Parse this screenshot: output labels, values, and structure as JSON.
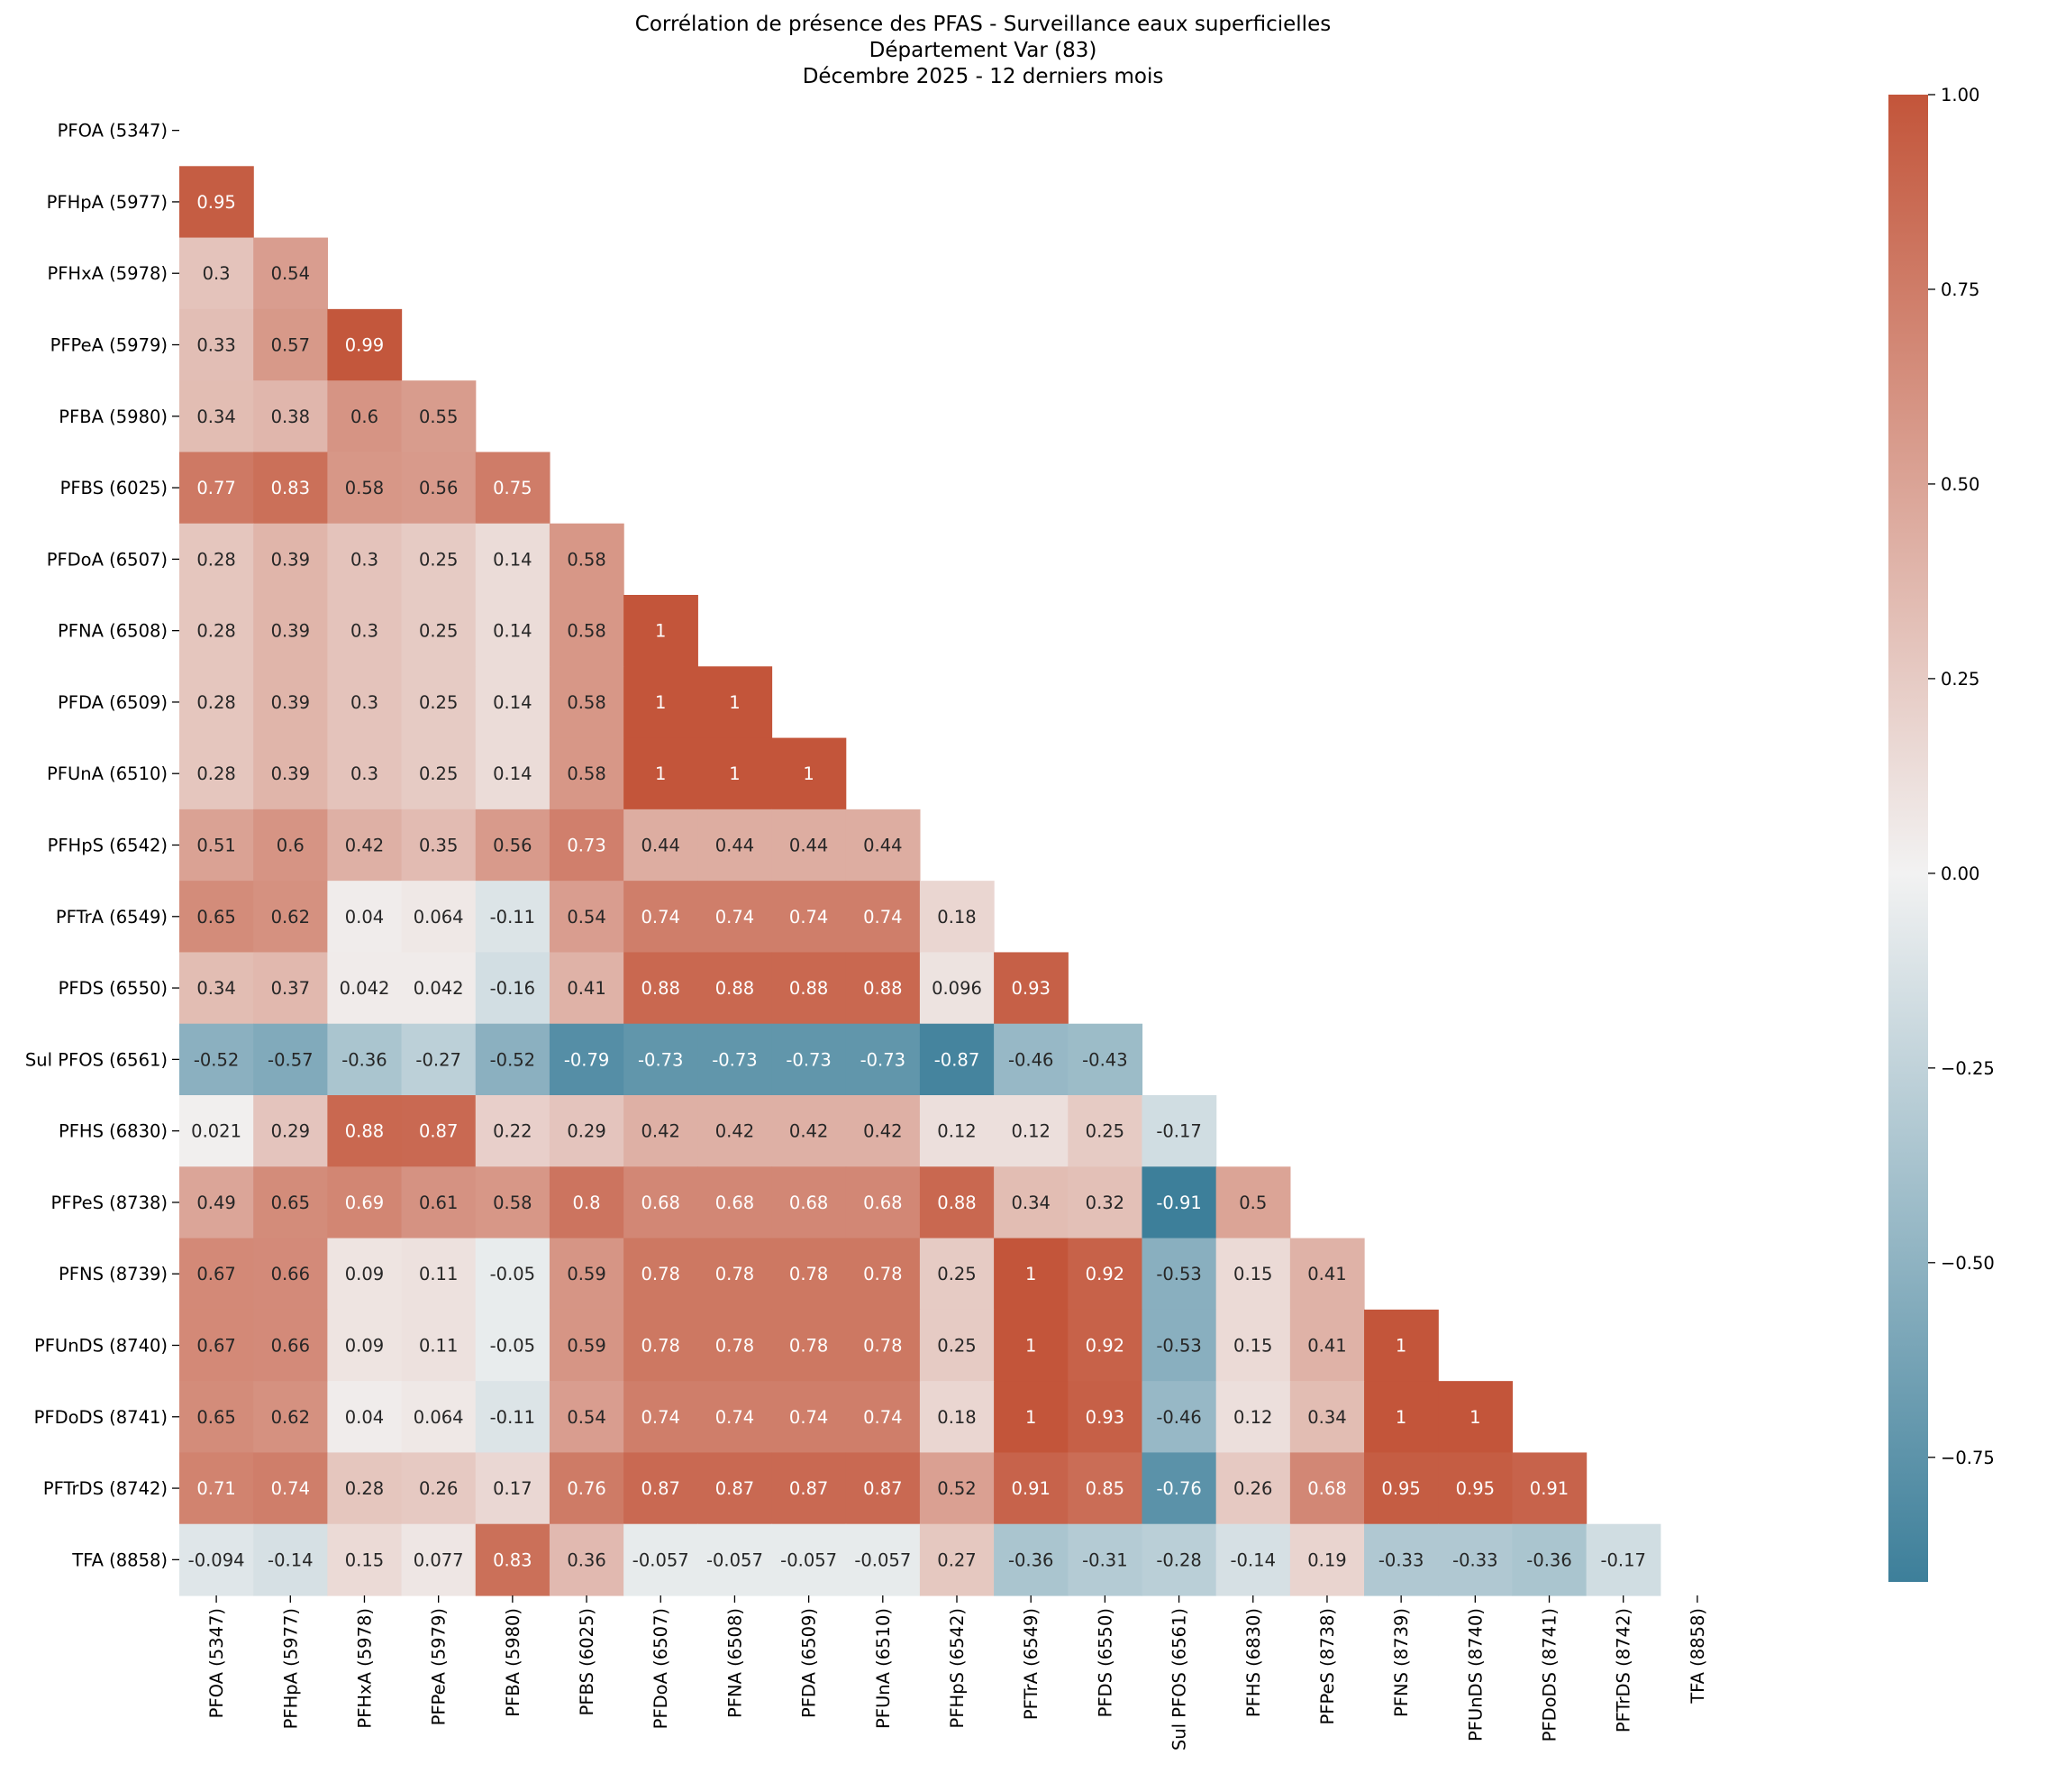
{
  "chart_data": {
    "type": "heatmap",
    "title": [
      "Corrélation de présence des PFAS - Surveillance eaux superficielles",
      "Département Var (83)",
      "Décembre 2025 - 12 derniers mois"
    ],
    "labels": [
      "PFOA (5347)",
      "PFHpA (5977)",
      "PFHxA (5978)",
      "PFPeA (5979)",
      "PFBA (5980)",
      "PFBS (6025)",
      "PFDoA (6507)",
      "PFNA (6508)",
      "PFDA (6509)",
      "PFUnA (6510)",
      "PFHpS (6542)",
      "PFTrA (6549)",
      "PFDS (6550)",
      "Sul PFOS (6561)",
      "PFHS (6830)",
      "PFPeS (8738)",
      "PFNS (8739)",
      "PFUnDS (8740)",
      "PFDoDS (8741)",
      "PFTrDS (8742)",
      "TFA (8858)"
    ],
    "lower_triangle": [
      [],
      [
        "0.95"
      ],
      [
        "0.3",
        "0.54"
      ],
      [
        "0.33",
        "0.57",
        "0.99"
      ],
      [
        "0.34",
        "0.38",
        "0.6",
        "0.55"
      ],
      [
        "0.77",
        "0.83",
        "0.58",
        "0.56",
        "0.75"
      ],
      [
        "0.28",
        "0.39",
        "0.3",
        "0.25",
        "0.14",
        "0.58"
      ],
      [
        "0.28",
        "0.39",
        "0.3",
        "0.25",
        "0.14",
        "0.58",
        "1"
      ],
      [
        "0.28",
        "0.39",
        "0.3",
        "0.25",
        "0.14",
        "0.58",
        "1",
        "1"
      ],
      [
        "0.28",
        "0.39",
        "0.3",
        "0.25",
        "0.14",
        "0.58",
        "1",
        "1",
        "1"
      ],
      [
        "0.51",
        "0.6",
        "0.42",
        "0.35",
        "0.56",
        "0.73",
        "0.44",
        "0.44",
        "0.44",
        "0.44"
      ],
      [
        "0.65",
        "0.62",
        "0.04",
        "0.064",
        "-0.11",
        "0.54",
        "0.74",
        "0.74",
        "0.74",
        "0.74",
        "0.18"
      ],
      [
        "0.34",
        "0.37",
        "0.042",
        "0.042",
        "-0.16",
        "0.41",
        "0.88",
        "0.88",
        "0.88",
        "0.88",
        "0.096",
        "0.93"
      ],
      [
        "-0.52",
        "-0.57",
        "-0.36",
        "-0.27",
        "-0.52",
        "-0.79",
        "-0.73",
        "-0.73",
        "-0.73",
        "-0.73",
        "-0.87",
        "-0.46",
        "-0.43"
      ],
      [
        "0.021",
        "0.29",
        "0.88",
        "0.87",
        "0.22",
        "0.29",
        "0.42",
        "0.42",
        "0.42",
        "0.42",
        "0.12",
        "0.12",
        "0.25",
        "-0.17"
      ],
      [
        "0.49",
        "0.65",
        "0.69",
        "0.61",
        "0.58",
        "0.8",
        "0.68",
        "0.68",
        "0.68",
        "0.68",
        "0.88",
        "0.34",
        "0.32",
        "-0.91",
        "0.5"
      ],
      [
        "0.67",
        "0.66",
        "0.09",
        "0.11",
        "-0.05",
        "0.59",
        "0.78",
        "0.78",
        "0.78",
        "0.78",
        "0.25",
        "1",
        "0.92",
        "-0.53",
        "0.15",
        "0.41"
      ],
      [
        "0.67",
        "0.66",
        "0.09",
        "0.11",
        "-0.05",
        "0.59",
        "0.78",
        "0.78",
        "0.78",
        "0.78",
        "0.25",
        "1",
        "0.92",
        "-0.53",
        "0.15",
        "0.41",
        "1"
      ],
      [
        "0.65",
        "0.62",
        "0.04",
        "0.064",
        "-0.11",
        "0.54",
        "0.74",
        "0.74",
        "0.74",
        "0.74",
        "0.18",
        "1",
        "0.93",
        "-0.46",
        "0.12",
        "0.34",
        "1",
        "1"
      ],
      [
        "0.71",
        "0.74",
        "0.28",
        "0.26",
        "0.17",
        "0.76",
        "0.87",
        "0.87",
        "0.87",
        "0.87",
        "0.52",
        "0.91",
        "0.85",
        "-0.76",
        "0.26",
        "0.68",
        "0.95",
        "0.95",
        "0.91"
      ],
      [
        "-0.094",
        "-0.14",
        "0.15",
        "0.077",
        "0.83",
        "0.36",
        "-0.057",
        "-0.057",
        "-0.057",
        "-0.057",
        "0.27",
        "-0.36",
        "-0.31",
        "-0.28",
        "-0.14",
        "0.19",
        "-0.33",
        "-0.33",
        "-0.36",
        "-0.17"
      ]
    ],
    "colorbar": {
      "vmin": -0.91,
      "vmax": 1.0,
      "ticks": [
        "1.00",
        "0.75",
        "0.50",
        "0.25",
        "0.00",
        "−0.25",
        "−0.50",
        "−0.75"
      ]
    },
    "colors": {
      "positive": "#c3553a",
      "neutral": "#f2f2f2",
      "negative": "#3d7f9a"
    }
  }
}
